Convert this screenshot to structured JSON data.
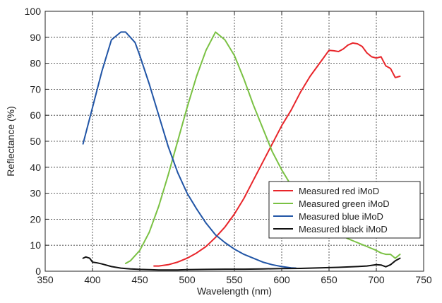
{
  "chart_data": {
    "type": "line",
    "title": "",
    "xlabel": "Wavelength (nm)",
    "ylabel": "Reflectance (%)",
    "xlim": [
      350,
      750
    ],
    "ylim": [
      0,
      100
    ],
    "x_ticks": [
      350,
      400,
      450,
      500,
      550,
      600,
      650,
      700,
      750
    ],
    "y_ticks": [
      0,
      10,
      20,
      30,
      40,
      50,
      60,
      70,
      80,
      90,
      100
    ],
    "x_tick_labels": [
      "350",
      "400",
      "450",
      "500",
      "550",
      "600",
      "650",
      "700",
      "750"
    ],
    "y_tick_labels": [
      "0",
      "10",
      "20",
      "30",
      "40",
      "50",
      "60",
      "70",
      "80",
      "90",
      "100"
    ],
    "grid": true,
    "grid_style": "dotted",
    "legend_position": "lower-right",
    "series": [
      {
        "name": "Measured red iMoD",
        "color": "#e8252a",
        "points": [
          [
            465,
            2
          ],
          [
            470,
            2
          ],
          [
            480,
            2.5
          ],
          [
            490,
            3.5
          ],
          [
            500,
            5
          ],
          [
            510,
            7
          ],
          [
            520,
            9.5
          ],
          [
            530,
            13
          ],
          [
            540,
            17
          ],
          [
            550,
            22
          ],
          [
            560,
            28
          ],
          [
            570,
            35
          ],
          [
            580,
            42
          ],
          [
            590,
            49
          ],
          [
            600,
            56
          ],
          [
            610,
            62
          ],
          [
            620,
            69
          ],
          [
            630,
            75
          ],
          [
            640,
            80
          ],
          [
            650,
            85
          ],
          [
            655,
            84.8
          ],
          [
            660,
            84.5
          ],
          [
            665,
            85.5
          ],
          [
            670,
            87
          ],
          [
            675,
            87.8
          ],
          [
            680,
            87.5
          ],
          [
            685,
            86.5
          ],
          [
            690,
            84
          ],
          [
            695,
            82.5
          ],
          [
            700,
            82
          ],
          [
            705,
            82.5
          ],
          [
            710,
            79
          ],
          [
            715,
            78
          ],
          [
            720,
            74.5
          ],
          [
            725,
            75
          ]
        ]
      },
      {
        "name": "Measured green iMoD",
        "color": "#7ac143",
        "points": [
          [
            435,
            3
          ],
          [
            440,
            4
          ],
          [
            450,
            8
          ],
          [
            460,
            15
          ],
          [
            470,
            25
          ],
          [
            480,
            37
          ],
          [
            490,
            50
          ],
          [
            500,
            63
          ],
          [
            510,
            75
          ],
          [
            520,
            85
          ],
          [
            530,
            92
          ],
          [
            540,
            89
          ],
          [
            550,
            83
          ],
          [
            560,
            74
          ],
          [
            570,
            64
          ],
          [
            580,
            55
          ],
          [
            590,
            46
          ],
          [
            600,
            39
          ],
          [
            610,
            33
          ],
          [
            620,
            28
          ],
          [
            630,
            24
          ],
          [
            640,
            20
          ],
          [
            650,
            17
          ],
          [
            660,
            14.5
          ],
          [
            670,
            12.5
          ],
          [
            680,
            11
          ],
          [
            690,
            9.5
          ],
          [
            700,
            8
          ],
          [
            705,
            7
          ],
          [
            710,
            6.5
          ],
          [
            715,
            6.5
          ],
          [
            720,
            5
          ],
          [
            725,
            6.5
          ]
        ]
      },
      {
        "name": "Measured blue iMoD",
        "color": "#2155a6",
        "points": [
          [
            390,
            49
          ],
          [
            400,
            63
          ],
          [
            410,
            77
          ],
          [
            420,
            89
          ],
          [
            430,
            92
          ],
          [
            435,
            92
          ],
          [
            440,
            90
          ],
          [
            445,
            88
          ],
          [
            450,
            83
          ],
          [
            460,
            72
          ],
          [
            470,
            60
          ],
          [
            480,
            48
          ],
          [
            490,
            38
          ],
          [
            500,
            30
          ],
          [
            510,
            24
          ],
          [
            520,
            18.5
          ],
          [
            530,
            14
          ],
          [
            540,
            11
          ],
          [
            550,
            8.5
          ],
          [
            560,
            6.5
          ],
          [
            570,
            5
          ],
          [
            580,
            3.5
          ],
          [
            590,
            2.5
          ],
          [
            600,
            1.8
          ],
          [
            610,
            1.3
          ],
          [
            615,
            1.2
          ]
        ]
      },
      {
        "name": "Measured black iMoD",
        "color": "#111111",
        "points": [
          [
            390,
            5
          ],
          [
            393,
            5.5
          ],
          [
            397,
            5
          ],
          [
            400,
            3.5
          ],
          [
            405,
            3.2
          ],
          [
            410,
            2.8
          ],
          [
            420,
            1.8
          ],
          [
            430,
            1.2
          ],
          [
            440,
            0.9
          ],
          [
            450,
            0.7
          ],
          [
            460,
            0.6
          ],
          [
            470,
            0.5
          ],
          [
            480,
            0.5
          ],
          [
            490,
            0.5
          ],
          [
            500,
            0.6
          ],
          [
            520,
            0.7
          ],
          [
            540,
            0.8
          ],
          [
            560,
            0.8
          ],
          [
            580,
            0.9
          ],
          [
            600,
            1
          ],
          [
            620,
            1.1
          ],
          [
            640,
            1.3
          ],
          [
            660,
            1.5
          ],
          [
            680,
            1.8
          ],
          [
            690,
            2
          ],
          [
            700,
            2.5
          ],
          [
            705,
            2.4
          ],
          [
            710,
            1.7
          ],
          [
            715,
            2.5
          ],
          [
            720,
            4
          ],
          [
            725,
            5
          ]
        ]
      }
    ]
  }
}
